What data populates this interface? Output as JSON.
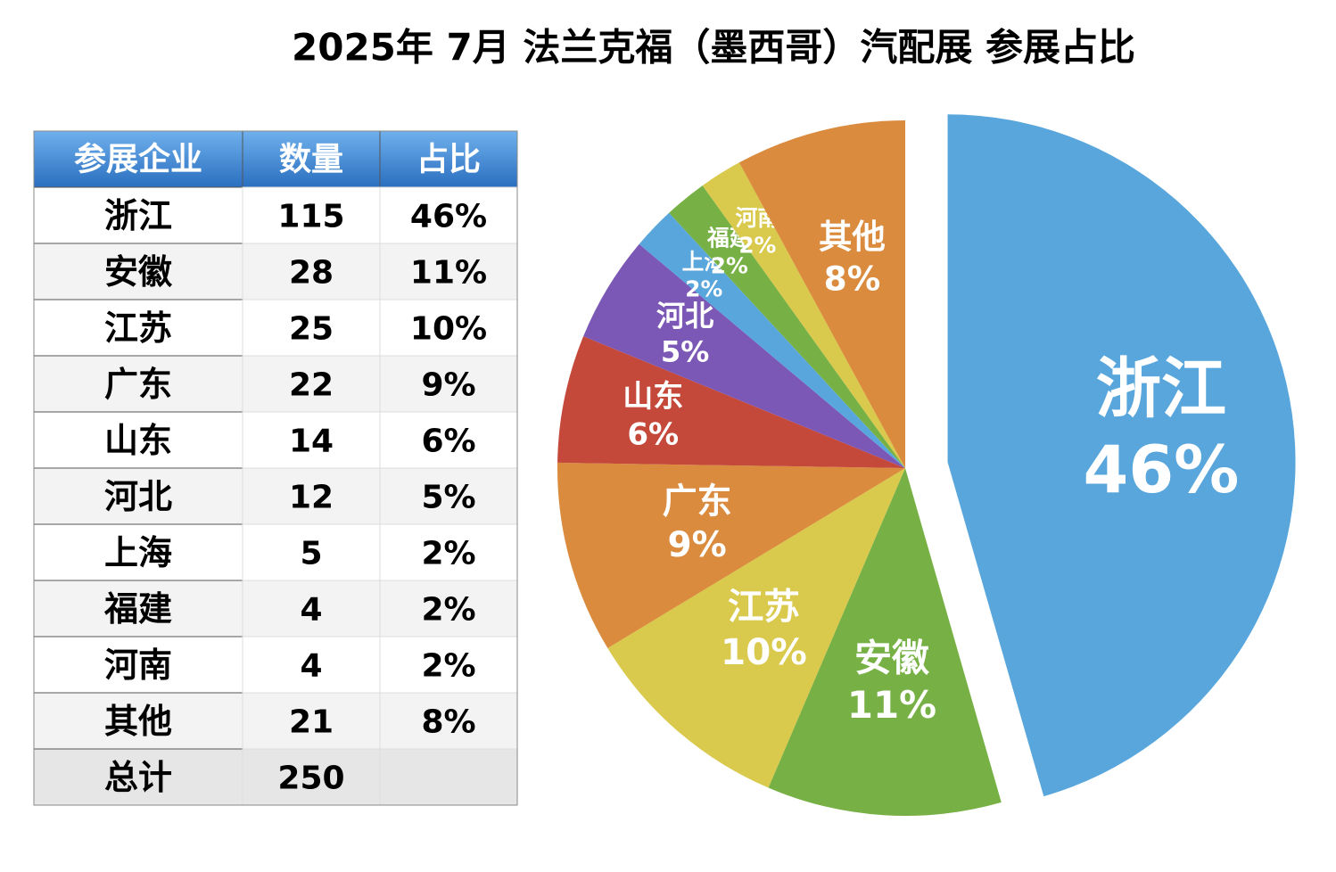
{
  "chart_data": {
    "type": "pie",
    "title": "2025年 7月 法兰克福（墨西哥）汽配展 参展占比",
    "categories": [
      "浙江",
      "安徽",
      "江苏",
      "广东",
      "山东",
      "河北",
      "上海",
      "福建",
      "河南",
      "其他"
    ],
    "values": [
      46,
      11,
      10,
      9,
      6,
      5,
      2,
      2,
      2,
      8
    ],
    "value_labels": [
      "46%",
      "11%",
      "10%",
      "9%",
      "6%",
      "5%",
      "2%",
      "2%",
      "2%",
      "8%"
    ],
    "colors": [
      "#58a6dc",
      "#77b145",
      "#d9c94c",
      "#da8b3e",
      "#c4493b",
      "#7c58b6",
      "#58a6dc",
      "#77b145",
      "#d9c94c",
      "#da8b3e"
    ],
    "exploded": "浙江"
  },
  "table": {
    "columns": [
      "参展企业",
      "数量",
      "占比"
    ],
    "rows": [
      [
        "浙江",
        115,
        "46%"
      ],
      [
        "安徽",
        28,
        "11%"
      ],
      [
        "江苏",
        25,
        "10%"
      ],
      [
        "广东",
        22,
        "9%"
      ],
      [
        "山东",
        14,
        "6%"
      ],
      [
        "河北",
        12,
        "5%"
      ],
      [
        "上海",
        5,
        "2%"
      ],
      [
        "福建",
        4,
        "2%"
      ],
      [
        "河南",
        4,
        "2%"
      ],
      [
        "其他",
        21,
        "8%"
      ]
    ],
    "total": {
      "label": "总计",
      "count": 250
    }
  }
}
